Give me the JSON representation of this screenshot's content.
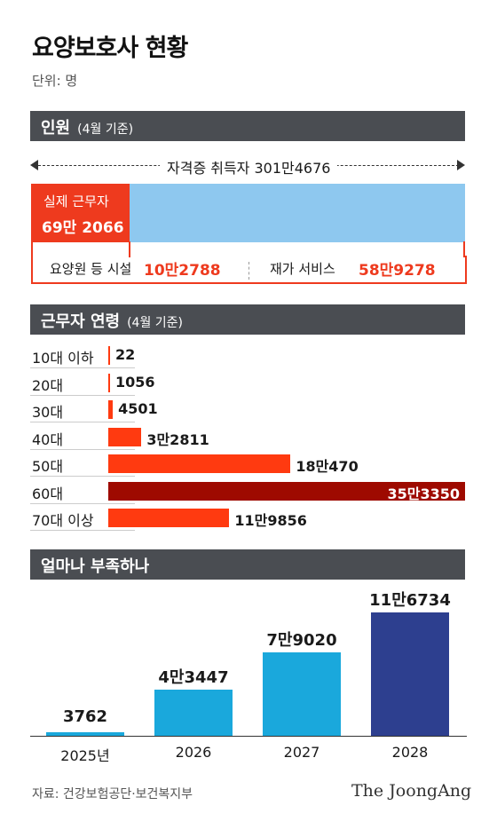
{
  "title": "요양보호사 현황",
  "unit": "단위: 명",
  "section1": {
    "head": "인원",
    "head_sub": "(4월 기준)",
    "total_label": "자격증 취득자 301만4676",
    "active_label": "실제 근무자",
    "active_value": "69만 2066",
    "facility_label": "요양원 등 시설",
    "facility_value": "10만2788",
    "home_label": "재가 서비스",
    "home_value": "58만9278"
  },
  "section2": {
    "head": "근무자 연령",
    "head_sub": "(4월 기준)"
  },
  "section3": {
    "head": "얼마나 부족하나"
  },
  "colors": {
    "header_bg": "#4a4d52",
    "red": "#ee3a1e",
    "dark_red": "#9e0a00",
    "light_blue": "#8ec8ef",
    "col_blue": "#1aa8dc",
    "col_navy": "#2d3f8f"
  },
  "chart_data": [
    {
      "type": "bar",
      "orientation": "horizontal",
      "categories": [
        "10대 이하",
        "20대",
        "30대",
        "40대",
        "50대",
        "60대",
        "70대 이상"
      ],
      "values": [
        22,
        1056,
        4501,
        32811,
        180470,
        353350,
        119856
      ],
      "value_labels": [
        "22",
        "1056",
        "4501",
        "3만2811",
        "18만470",
        "35만3350",
        "11만9856"
      ],
      "highlight_index": 5
    },
    {
      "type": "bar",
      "categories": [
        "2025년",
        "2026",
        "2027",
        "2028"
      ],
      "values": [
        3762,
        43447,
        79020,
        116734
      ],
      "value_labels": [
        "3762",
        "4만3447",
        "7만9020",
        "11만6734"
      ]
    }
  ],
  "footer": {
    "source": "자료: 건강보험공단·보건복지부",
    "logo": "The JoongAng"
  }
}
